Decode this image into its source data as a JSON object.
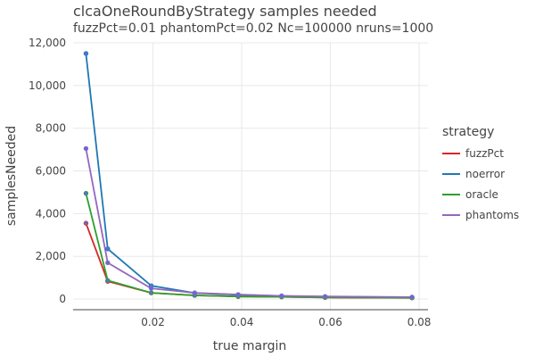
{
  "chart_data": {
    "type": "line",
    "title": "clcaOneRoundByStrategy samples needed",
    "subtitle": "fuzzPct=0.01 phantomPct=0.02 Nc=100000 nruns=1000",
    "xlabel": "true margin",
    "ylabel": "samplesNeeded",
    "xlim": [
      0.002,
      0.082
    ],
    "ylim": [
      -500,
      12000
    ],
    "xticks": [
      0.02,
      0.04,
      0.06,
      0.08
    ],
    "xtick_labels": [
      "0.02",
      "0.04",
      "0.06",
      "0.08"
    ],
    "yticks": [
      0,
      2000,
      4000,
      6000,
      8000,
      10000,
      12000
    ],
    "ytick_labels": [
      "0",
      "2,000",
      "4,000",
      "6,000",
      "8,000",
      "10,000",
      "12,000"
    ],
    "grid": true,
    "legend_title": "strategy",
    "legend_position": "right",
    "x": [
      0.0049,
      0.0098,
      0.0196,
      0.0294,
      0.0392,
      0.049,
      0.0588,
      0.0784
    ],
    "series": [
      {
        "name": "fuzzPct",
        "color": "#d62728",
        "values": [
          3550,
          830,
          290,
          170,
          120,
          100,
          70,
          55
        ]
      },
      {
        "name": "noerror",
        "color": "#1f77b4",
        "values": [
          11500,
          2350,
          620,
          280,
          200,
          140,
          110,
          80
        ]
      },
      {
        "name": "oracle",
        "color": "#2ca02c",
        "values": [
          4950,
          870,
          290,
          170,
          120,
          100,
          75,
          55
        ]
      },
      {
        "name": "phantoms",
        "color": "#9467bd",
        "values": [
          7050,
          1700,
          500,
          290,
          210,
          150,
          120,
          90
        ]
      }
    ],
    "marker_color": "#5b6fd6"
  }
}
